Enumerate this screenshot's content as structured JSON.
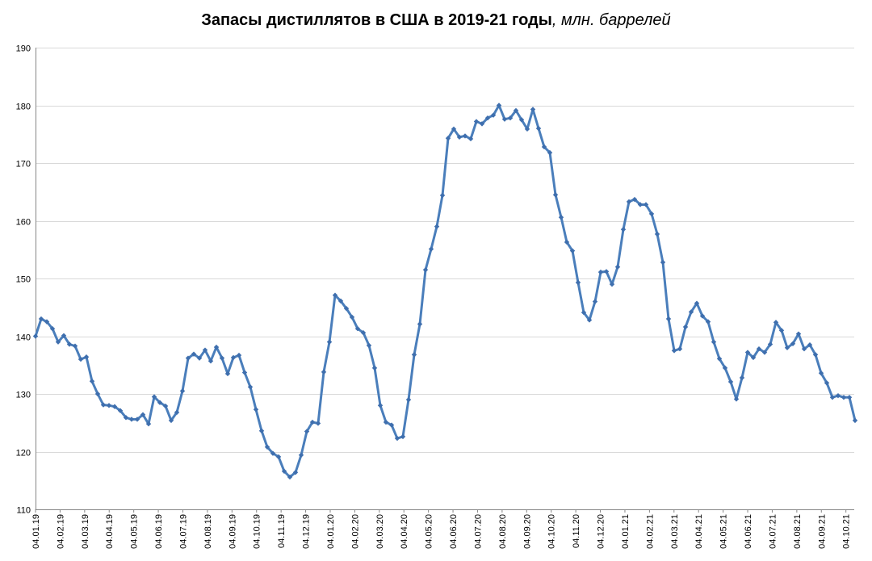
{
  "title_main": "Запасы дистиллятов в США в 2019-21 годы",
  "title_unit": ", млн. баррелей",
  "colors": {
    "series": "#4a7ebb",
    "marker": "#3f6fae",
    "grid": "#d9d9d9",
    "axis": "#868686"
  },
  "chart_data": {
    "type": "line",
    "title": "Запасы дистиллятов в США в 2019-21 годы, млн. баррелей",
    "xlabel": "",
    "ylabel": "",
    "ylim": [
      110,
      190
    ],
    "yticks": [
      110,
      120,
      130,
      140,
      150,
      160,
      170,
      180,
      190
    ],
    "grid": true,
    "legend": "none",
    "x_start_date": "04.01.19",
    "x_interval": "weekly",
    "xtick_labels": [
      "04.01.19",
      "04.02.19",
      "04.03.19",
      "04.04.19",
      "04.05.19",
      "04.06.19",
      "04.07.19",
      "04.08.19",
      "04.09.19",
      "04.10.19",
      "04.11.19",
      "04.12.19",
      "04.01.20",
      "04.02.20",
      "04.03.20",
      "04.04.20",
      "04.05.20",
      "04.06.20",
      "04.07.20",
      "04.08.20",
      "04.09.20",
      "04.10.20",
      "04.11.20",
      "04.12.20",
      "04.01.21",
      "04.02.21",
      "04.03.21",
      "04.04.21",
      "04.05.21",
      "04.06.21",
      "04.07.21",
      "04.08.21",
      "04.09.21",
      "04.10.21"
    ],
    "series": [
      {
        "values": [
          140.0,
          143.0,
          142.5,
          141.3,
          139.0,
          140.1,
          138.6,
          138.3,
          136.0,
          136.4,
          132.2,
          130.0,
          128.1,
          128.0,
          127.8,
          127.1,
          125.9,
          125.6,
          125.6,
          126.4,
          124.8,
          129.5,
          128.5,
          127.9,
          125.4,
          126.8,
          130.5,
          136.2,
          136.9,
          136.2,
          137.6,
          135.7,
          138.1,
          136.2,
          133.5,
          136.3,
          136.7,
          133.7,
          131.2,
          127.3,
          123.6,
          120.8,
          119.7,
          119.1,
          116.6,
          115.6,
          116.4,
          119.4,
          123.5,
          125.1,
          124.9,
          133.8,
          139.0,
          147.1,
          146.1,
          144.8,
          143.3,
          141.3,
          140.6,
          138.4,
          134.5,
          128.0,
          125.1,
          124.6,
          122.3,
          122.6,
          129.0,
          136.8,
          142.1,
          151.5,
          155.1,
          159.0,
          164.4,
          174.3,
          175.9,
          174.5,
          174.7,
          174.2,
          177.2,
          176.8,
          177.8,
          178.3,
          180.0,
          177.6,
          177.8,
          179.1,
          177.5,
          175.9,
          179.3,
          176.0,
          172.8,
          171.8,
          164.5,
          160.6,
          156.3,
          154.8,
          149.3,
          144.1,
          142.8,
          146.0,
          151.1,
          151.2,
          149.0,
          152.0,
          158.5,
          163.3,
          163.7,
          162.8,
          162.8,
          161.2,
          157.7,
          152.8,
          143.0,
          137.5,
          137.8,
          141.6,
          144.2,
          145.7,
          143.5,
          142.5,
          139.0,
          136.1,
          134.5,
          132.1,
          129.1,
          132.8,
          137.2,
          136.3,
          137.8,
          137.2,
          138.6,
          142.4,
          141.0,
          138.0,
          138.7,
          140.4,
          137.8,
          138.5,
          136.8,
          133.6,
          131.9,
          129.4,
          129.7,
          129.4,
          129.4,
          125.4
        ]
      }
    ]
  }
}
